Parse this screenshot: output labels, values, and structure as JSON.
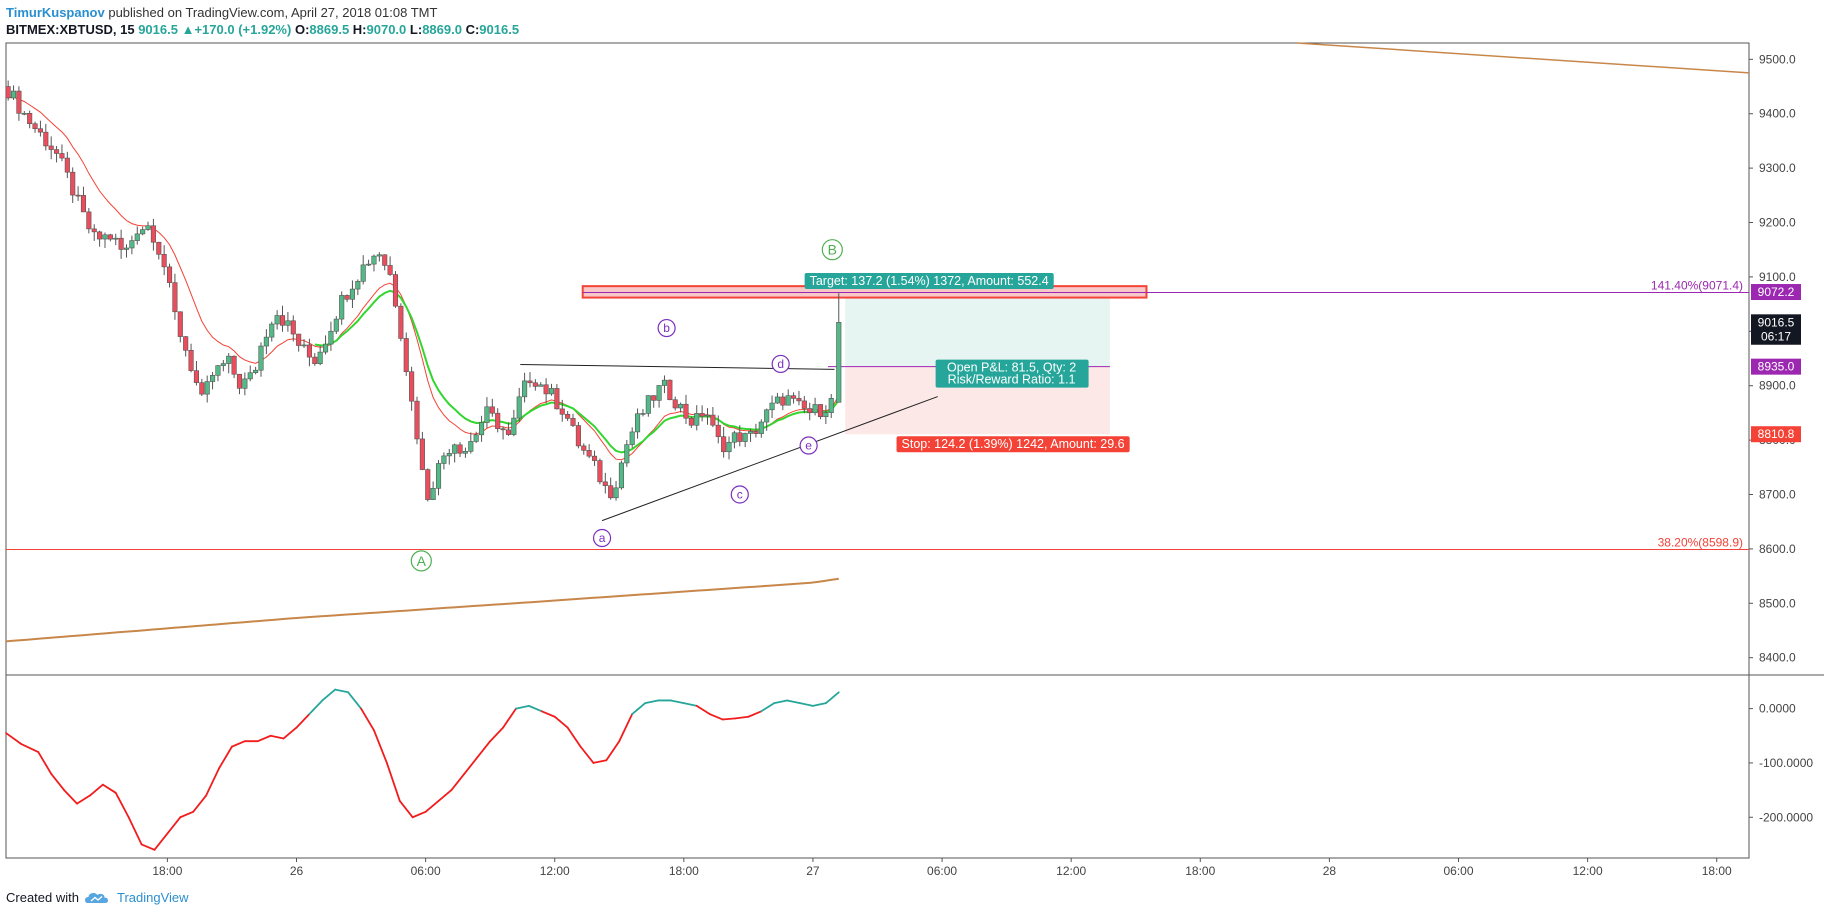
{
  "header": {
    "author": "TimurKuspanov",
    "published_text": "published on TradingView.com, April 27, 2018 01:08 TMT"
  },
  "symbol_line": {
    "symbol": "BITMEX:XBTUSD, 15",
    "last": "9016.5",
    "change_arrow": "▲",
    "change": "+170.0 (+1.92%)",
    "open_label": "O:",
    "open": "8869.5",
    "high_label": "H:",
    "high": "9070.0",
    "low_label": "L:",
    "low": "8869.0",
    "close_label": "C:",
    "close": "9016.5"
  },
  "footer": {
    "created_with": "Created with",
    "brand": "TradingView",
    "logo_icon": "tradingview-cloud-icon"
  },
  "colors": {
    "up": "#26a69a",
    "up_body": "#53b987",
    "down": "#d9534f",
    "down_body": "#eb4d5c",
    "fib": "#f44336",
    "fib_ext": "#9c27b0",
    "ema_red": "#f44336",
    "ema_green": "#33d62f",
    "ma_long": "#c8874a",
    "target_fill": "#e6f5f1",
    "stop_fill": "#fde8e8",
    "wave_purple": "#7b2fbe",
    "wave_green": "#4caf50",
    "osc_pos": "#26a69a",
    "osc_neg": "#f21c1c"
  },
  "chart_data": {
    "type": "candlestick",
    "symbol": "BITMEX:XBTUSD",
    "interval": "15",
    "price_axis": {
      "range": [
        8370,
        9530
      ],
      "ticks": [
        "9500.0",
        "9400.0",
        "9300.0",
        "9200.0",
        "9100.0",
        "9000.0",
        "8900.0",
        "8800.0",
        "8700.0",
        "8600.0",
        "8500.0",
        "8400.0"
      ]
    },
    "oscillator_axis": {
      "range": [
        -275,
        60
      ],
      "ticks": [
        "0.0000",
        "-100.0000",
        "-200.0000"
      ]
    },
    "time_axis": {
      "range_hours": [
        -13.5,
        67.5
      ],
      "ticks": [
        {
          "label": "18:00",
          "h": -6
        },
        {
          "label": "26",
          "h": 0
        },
        {
          "label": "06:00",
          "h": 6
        },
        {
          "label": "12:00",
          "h": 12
        },
        {
          "label": "18:00",
          "h": 18
        },
        {
          "label": "27",
          "h": 24
        },
        {
          "label": "06:00",
          "h": 30
        },
        {
          "label": "12:00",
          "h": 36
        },
        {
          "label": "18:00",
          "h": 42
        },
        {
          "label": "28",
          "h": 48
        },
        {
          "label": "06:00",
          "h": 54
        },
        {
          "label": "12:00",
          "h": 60
        },
        {
          "label": "18:00",
          "h": 66
        }
      ]
    },
    "price_path": [
      [
        -13.5,
        9450
      ],
      [
        -12.5,
        9390
      ],
      [
        -11.2,
        9330
      ],
      [
        -10.5,
        9270
      ],
      [
        -9.9,
        9210
      ],
      [
        -9.4,
        9170
      ],
      [
        -8.6,
        9175
      ],
      [
        -8.0,
        9140
      ],
      [
        -7.4,
        9190
      ],
      [
        -6.8,
        9195
      ],
      [
        -6.2,
        9130
      ],
      [
        -5.6,
        9020
      ],
      [
        -5.0,
        8950
      ],
      [
        -4.4,
        8870
      ],
      [
        -3.9,
        8920
      ],
      [
        -3.2,
        8945
      ],
      [
        -2.6,
        8900
      ],
      [
        -2.0,
        8920
      ],
      [
        -1.6,
        8980
      ],
      [
        -1.0,
        9040
      ],
      [
        -0.4,
        9010
      ],
      [
        0.2,
        8970
      ],
      [
        0.8,
        8945
      ],
      [
        1.4,
        8990
      ],
      [
        2.0,
        9050
      ],
      [
        2.6,
        9090
      ],
      [
        3.2,
        9125
      ],
      [
        3.8,
        9150
      ],
      [
        4.4,
        9100
      ],
      [
        4.9,
        8990
      ],
      [
        5.3,
        8880
      ],
      [
        5.7,
        8790
      ],
      [
        6.0,
        8690
      ],
      [
        6.3,
        8720
      ],
      [
        6.8,
        8770
      ],
      [
        7.3,
        8800
      ],
      [
        7.8,
        8780
      ],
      [
        8.3,
        8810
      ],
      [
        8.8,
        8850
      ],
      [
        9.4,
        8830
      ],
      [
        9.9,
        8800
      ],
      [
        10.4,
        8880
      ],
      [
        10.9,
        8920
      ],
      [
        11.4,
        8900
      ],
      [
        11.9,
        8880
      ],
      [
        12.5,
        8850
      ],
      [
        13.0,
        8800
      ],
      [
        13.5,
        8770
      ],
      [
        14.0,
        8740
      ],
      [
        14.5,
        8700
      ],
      [
        14.9,
        8730
      ],
      [
        15.4,
        8800
      ],
      [
        15.9,
        8840
      ],
      [
        16.4,
        8870
      ],
      [
        17.0,
        8900
      ],
      [
        17.5,
        8880
      ],
      [
        18.0,
        8850
      ],
      [
        18.5,
        8830
      ],
      [
        19.0,
        8860
      ],
      [
        19.5,
        8800
      ],
      [
        20.0,
        8790
      ],
      [
        20.5,
        8810
      ],
      [
        21.0,
        8800
      ],
      [
        21.5,
        8830
      ],
      [
        22.1,
        8860
      ],
      [
        22.7,
        8880
      ],
      [
        23.3,
        8860
      ],
      [
        23.9,
        8850
      ],
      [
        24.5,
        8860
      ],
      [
        25.0,
        8875
      ],
      [
        25.2,
        9016.5
      ]
    ],
    "last_candle": {
      "open": 8869.5,
      "high": 9070.0,
      "low": 8869.0,
      "close": 9016.5
    },
    "ma_long_points": [
      [
        -13.5,
        8430
      ],
      [
        0,
        8473
      ],
      [
        12,
        8505
      ],
      [
        24,
        8538
      ],
      [
        25.2,
        8545
      ]
    ],
    "ma_long_upper_points": [
      [
        46.5,
        9530
      ],
      [
        67.5,
        9475
      ]
    ],
    "fib_levels": [
      {
        "label": "38.20%(8598.9)",
        "value": 8598.9
      },
      {
        "label": "141.40%(9071.4)",
        "value": 9071.4
      }
    ],
    "price_tags": [
      {
        "label": "9072.2",
        "value": 9072.2,
        "color": "#9c27b0"
      },
      {
        "label": "9016.5",
        "value": 9016.5,
        "color": "#131722"
      },
      {
        "label": "06:17",
        "value": 8990,
        "color": "#131722"
      },
      {
        "label": "8935.0",
        "value": 8935.0,
        "color": "#9c27b0"
      },
      {
        "label": "8810.8",
        "value": 8810.8,
        "color": "#f44336"
      }
    ],
    "position": {
      "entry": 8935.0,
      "target": 9072.2,
      "stop": 8810.8,
      "start_h": 25.5,
      "end_h": 37.8,
      "target_label": "Target: 137.2 (1.54%) 1372, Amount: 552.4",
      "stop_label": "Stop: 124.2 (1.39%) 1242, Amount: 29.6",
      "pnl_label": "Open P&L: 81.5, Qty: 2",
      "rr_label": "Risk/Reward Ratio: 1.1"
    },
    "resistance_zone": {
      "from_h": 13.3,
      "to_h": 39.5,
      "low": 9062,
      "high": 9083
    },
    "wave_labels": [
      {
        "text": "A",
        "h": 5.8,
        "price": 8578,
        "color": "#4caf50",
        "size": "big"
      },
      {
        "text": "B",
        "h": 24.9,
        "price": 9150,
        "color": "#4caf50",
        "size": "big"
      },
      {
        "text": "a",
        "h": 14.2,
        "price": 8620,
        "color": "#7b2fbe",
        "size": "small"
      },
      {
        "text": "b",
        "h": 17.2,
        "price": 9006,
        "color": "#7b2fbe",
        "size": "small"
      },
      {
        "text": "c",
        "h": 20.6,
        "price": 8700,
        "color": "#7b2fbe",
        "size": "small"
      },
      {
        "text": "d",
        "h": 22.5,
        "price": 8940,
        "color": "#7b2fbe",
        "size": "small"
      },
      {
        "text": "e",
        "h": 23.8,
        "price": 8790,
        "color": "#7b2fbe",
        "size": "small"
      }
    ],
    "trendlines": [
      {
        "name": "triangle-upper",
        "points": [
          [
            10.4,
            8939
          ],
          [
            25.0,
            8930
          ]
        ]
      },
      {
        "name": "triangle-lower",
        "points": [
          [
            14.2,
            8652
          ],
          [
            29.8,
            8880
          ]
        ]
      }
    ],
    "oscillator": [
      [
        -13.5,
        -45
      ],
      [
        -12.8,
        -65
      ],
      [
        -12.0,
        -80
      ],
      [
        -11.4,
        -120
      ],
      [
        -10.8,
        -150
      ],
      [
        -10.2,
        -175
      ],
      [
        -9.6,
        -160
      ],
      [
        -9.0,
        -140
      ],
      [
        -8.4,
        -155
      ],
      [
        -7.8,
        -200
      ],
      [
        -7.2,
        -250
      ],
      [
        -6.6,
        -260
      ],
      [
        -6.0,
        -230
      ],
      [
        -5.4,
        -200
      ],
      [
        -4.8,
        -190
      ],
      [
        -4.2,
        -160
      ],
      [
        -3.6,
        -110
      ],
      [
        -3.0,
        -70
      ],
      [
        -2.4,
        -60
      ],
      [
        -1.8,
        -60
      ],
      [
        -1.2,
        -50
      ],
      [
        -0.6,
        -55
      ],
      [
        0.0,
        -35
      ],
      [
        0.6,
        -10
      ],
      [
        1.2,
        15
      ],
      [
        1.8,
        35
      ],
      [
        2.4,
        30
      ],
      [
        3.0,
        0
      ],
      [
        3.6,
        -40
      ],
      [
        4.2,
        -100
      ],
      [
        4.8,
        -170
      ],
      [
        5.4,
        -200
      ],
      [
        6.0,
        -190
      ],
      [
        6.6,
        -170
      ],
      [
        7.2,
        -150
      ],
      [
        7.8,
        -120
      ],
      [
        8.4,
        -90
      ],
      [
        9.0,
        -60
      ],
      [
        9.6,
        -35
      ],
      [
        10.2,
        0
      ],
      [
        10.8,
        5
      ],
      [
        11.4,
        -5
      ],
      [
        12.0,
        -15
      ],
      [
        12.6,
        -35
      ],
      [
        13.2,
        -70
      ],
      [
        13.8,
        -100
      ],
      [
        14.4,
        -95
      ],
      [
        15.0,
        -60
      ],
      [
        15.6,
        -10
      ],
      [
        16.2,
        10
      ],
      [
        16.8,
        15
      ],
      [
        17.4,
        15
      ],
      [
        18.0,
        10
      ],
      [
        18.6,
        5
      ],
      [
        19.2,
        -10
      ],
      [
        19.8,
        -20
      ],
      [
        20.4,
        -18
      ],
      [
        21.0,
        -15
      ],
      [
        21.6,
        -5
      ],
      [
        22.2,
        10
      ],
      [
        22.8,
        15
      ],
      [
        23.4,
        10
      ],
      [
        24.0,
        5
      ],
      [
        24.6,
        10
      ],
      [
        25.2,
        30
      ]
    ]
  }
}
